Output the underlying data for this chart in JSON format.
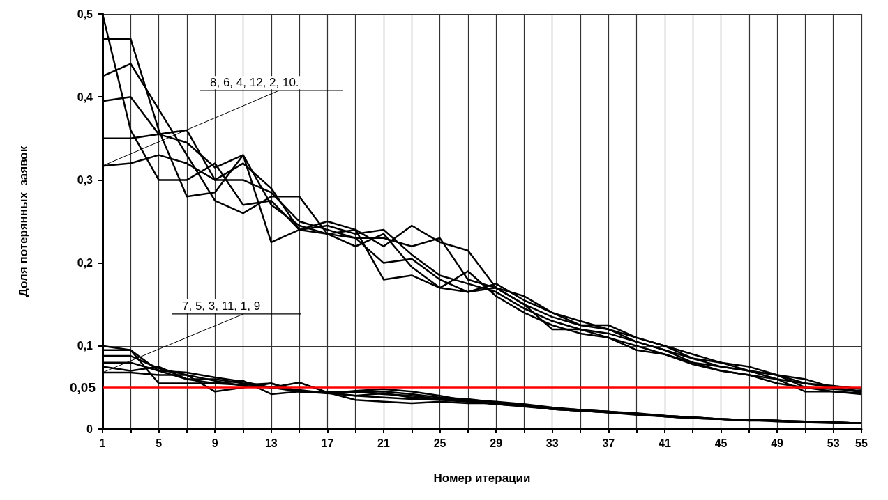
{
  "chart_data": {
    "type": "line",
    "xlabel": "Номер итерации",
    "ylabel": "Доля потерянных  заявок",
    "x": [
      1,
      3,
      5,
      7,
      9,
      11,
      13,
      15,
      17,
      19,
      21,
      23,
      25,
      27,
      29,
      31,
      33,
      35,
      37,
      39,
      41,
      43,
      45,
      47,
      49,
      51,
      53,
      55
    ],
    "xlim": [
      1,
      55
    ],
    "xticks": [
      1,
      {
        "value": 3,
        "label": null
      },
      5,
      {
        "value": 7,
        "label": null
      },
      9,
      {
        "value": 11,
        "label": null
      },
      13,
      {
        "value": 15,
        "label": null
      },
      17,
      {
        "value": 19,
        "label": null
      },
      21,
      {
        "value": 23,
        "label": null
      },
      25,
      {
        "value": 27,
        "label": null
      },
      29,
      {
        "value": 31,
        "label": null
      },
      33,
      {
        "value": 35,
        "label": null
      },
      37,
      {
        "value": 39,
        "label": null
      },
      41,
      {
        "value": 43,
        "label": null
      },
      45,
      {
        "value": 47,
        "label": null
      },
      49,
      {
        "value": 51,
        "label": null
      },
      53,
      55
    ],
    "ylim": [
      0,
      0.5
    ],
    "yticks": [
      0,
      {
        "value": 0.1,
        "label": "0,1"
      },
      {
        "value": 0.2,
        "label": "0,2"
      },
      {
        "value": 0.3,
        "label": "0,3"
      },
      {
        "value": 0.4,
        "label": "0,4"
      },
      {
        "value": 0.5,
        "label": "0,5"
      }
    ],
    "grid": true,
    "series": [
      {
        "color": "#000000",
        "values": [
          0.5,
          0.36,
          0.3,
          0.3,
          0.32,
          0.27,
          0.275,
          0.24,
          0.25,
          0.24,
          0.18,
          0.185,
          0.17,
          0.165,
          0.17,
          0.15,
          0.135,
          0.125,
          0.125,
          0.11,
          0.1,
          0.085,
          0.075,
          0.07,
          0.06,
          0.055,
          0.05,
          0.045
        ]
      },
      {
        "color": "#000000",
        "values": [
          0.47,
          0.47,
          0.36,
          0.28,
          0.285,
          0.33,
          0.225,
          0.24,
          0.245,
          0.235,
          0.24,
          0.21,
          0.185,
          0.175,
          0.165,
          0.145,
          0.13,
          0.12,
          0.115,
          0.105,
          0.095,
          0.08,
          0.075,
          0.07,
          0.065,
          0.05,
          0.048,
          0.046
        ]
      },
      {
        "color": "#000000",
        "values": [
          0.425,
          0.44,
          0.385,
          0.33,
          0.275,
          0.26,
          0.28,
          0.28,
          0.235,
          0.23,
          0.2,
          0.205,
          0.18,
          0.165,
          0.175,
          0.155,
          0.14,
          0.13,
          0.12,
          0.11,
          0.1,
          0.09,
          0.08,
          0.07,
          0.065,
          0.06,
          0.05,
          0.044
        ]
      },
      {
        "color": "#000000",
        "values": [
          0.395,
          0.4,
          0.355,
          0.36,
          0.3,
          0.32,
          0.29,
          0.24,
          0.235,
          0.22,
          0.235,
          0.195,
          0.17,
          0.19,
          0.16,
          0.14,
          0.125,
          0.115,
          0.11,
          0.1,
          0.09,
          0.078,
          0.07,
          0.065,
          0.06,
          0.045,
          0.045,
          0.042
        ]
      },
      {
        "color": "#000000",
        "values": [
          0.35,
          0.35,
          0.355,
          0.345,
          0.315,
          0.33,
          0.27,
          0.245,
          0.235,
          0.24,
          0.22,
          0.245,
          0.225,
          0.215,
          0.17,
          0.16,
          0.14,
          0.125,
          0.12,
          0.105,
          0.095,
          0.085,
          0.08,
          0.075,
          0.065,
          0.055,
          0.052,
          0.048
        ]
      },
      {
        "color": "#000000",
        "values": [
          0.317,
          0.32,
          0.33,
          0.32,
          0.3,
          0.3,
          0.285,
          0.25,
          0.24,
          0.23,
          0.23,
          0.22,
          0.23,
          0.18,
          0.17,
          0.15,
          0.12,
          0.12,
          0.11,
          0.095,
          0.09,
          0.08,
          0.07,
          0.065,
          0.055,
          0.05,
          0.045,
          0.043
        ]
      },
      {
        "color": "#000000",
        "values": [
          0.1,
          0.095,
          0.055,
          0.055,
          0.055,
          0.053,
          0.055,
          0.045,
          0.045,
          0.045,
          0.042,
          0.04,
          0.036,
          0.035,
          0.033,
          0.03,
          0.026,
          0.023,
          0.021,
          0.019,
          0.016,
          0.014,
          0.012,
          0.011,
          0.01,
          0.009,
          0.008,
          0.007
        ]
      },
      {
        "color": "#000000",
        "values": [
          0.095,
          0.095,
          0.07,
          0.06,
          0.055,
          0.058,
          0.042,
          0.045,
          0.045,
          0.044,
          0.045,
          0.042,
          0.038,
          0.036,
          0.032,
          0.029,
          0.025,
          0.022,
          0.02,
          0.018,
          0.016,
          0.014,
          0.012,
          0.011,
          0.01,
          0.008,
          0.007,
          0.007
        ]
      },
      {
        "color": "#000000",
        "values": [
          0.088,
          0.088,
          0.073,
          0.065,
          0.045,
          0.05,
          0.055,
          0.045,
          0.044,
          0.035,
          0.033,
          0.031,
          0.033,
          0.031,
          0.031,
          0.028,
          0.024,
          0.022,
          0.021,
          0.018,
          0.015,
          0.013,
          0.012,
          0.011,
          0.009,
          0.008,
          0.008,
          0.007
        ]
      },
      {
        "color": "#000000",
        "values": [
          0.08,
          0.08,
          0.07,
          0.068,
          0.062,
          0.057,
          0.05,
          0.047,
          0.043,
          0.046,
          0.048,
          0.045,
          0.04,
          0.034,
          0.03,
          0.028,
          0.025,
          0.023,
          0.021,
          0.018,
          0.016,
          0.014,
          0.012,
          0.01,
          0.01,
          0.009,
          0.008,
          0.007
        ]
      },
      {
        "color": "#000000",
        "values": [
          0.075,
          0.07,
          0.075,
          0.06,
          0.06,
          0.055,
          0.05,
          0.045,
          0.043,
          0.04,
          0.038,
          0.036,
          0.035,
          0.033,
          0.03,
          0.027,
          0.024,
          0.022,
          0.02,
          0.018,
          0.015,
          0.013,
          0.012,
          0.011,
          0.01,
          0.009,
          0.008,
          0.007
        ]
      },
      {
        "color": "#000000",
        "values": [
          0.068,
          0.068,
          0.065,
          0.065,
          0.058,
          0.052,
          0.05,
          0.056,
          0.044,
          0.04,
          0.043,
          0.038,
          0.036,
          0.034,
          0.03,
          0.028,
          0.024,
          0.022,
          0.02,
          0.017,
          0.015,
          0.013,
          0.012,
          0.011,
          0.01,
          0.008,
          0.008,
          0.007
        ]
      }
    ],
    "ref_lines": [
      {
        "axis": "y",
        "value": 0.05,
        "label": "0,05",
        "color": "#ff0000"
      }
    ],
    "annotations": [
      {
        "text": "8, 6, 4, 12, 2, 10.",
        "x": 1,
        "y": 0.317
      },
      {
        "text": "7, 5, 3, 11, 1, 9",
        "x": 1,
        "y": 0.068
      }
    ]
  }
}
